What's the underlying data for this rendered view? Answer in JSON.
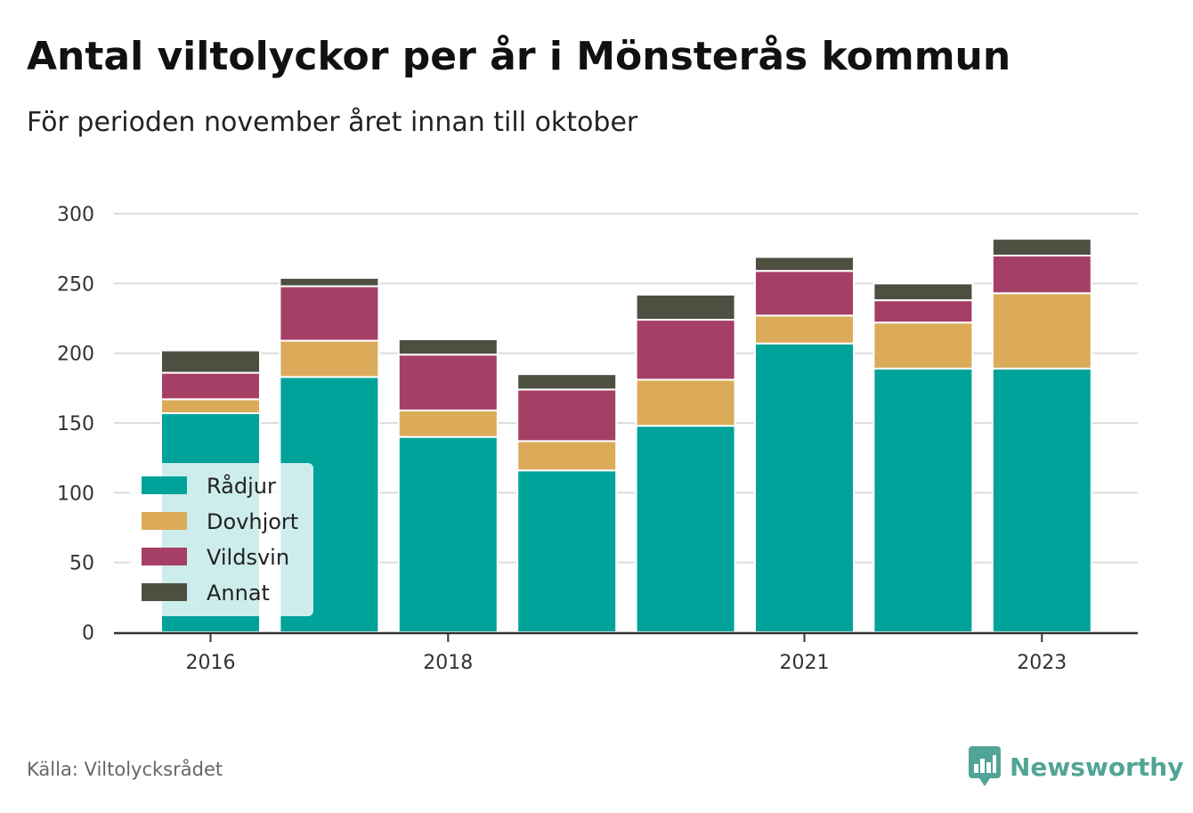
{
  "title": "Antal viltolyckor per år i Mönsterås kommun",
  "subtitle": "För perioden november året innan till oktober",
  "source": "Källa: Viltolycksrådet",
  "brand": "Newsworthy",
  "colors": {
    "Rådjur": "#00a39a",
    "Dovhjort": "#dbab5a",
    "Vildsvin": "#a63f66",
    "Annat": "#4e4f41",
    "grid": "#dcdcdc",
    "axis": "#333333"
  },
  "chart_data": {
    "type": "bar",
    "stacked": true,
    "categories": [
      "2016",
      "2017",
      "2018",
      "2019",
      "2020",
      "2021",
      "2022",
      "2023"
    ],
    "x_tick_labels": [
      "2016",
      "2018",
      "2021",
      "2023"
    ],
    "series": [
      {
        "name": "Rådjur",
        "values": [
          157,
          183,
          140,
          116,
          148,
          207,
          189,
          189
        ]
      },
      {
        "name": "Dovhjort",
        "values": [
          10,
          26,
          19,
          21,
          33,
          20,
          33,
          54
        ]
      },
      {
        "name": "Vildsvin",
        "values": [
          19,
          39,
          40,
          37,
          43,
          32,
          16,
          27
        ]
      },
      {
        "name": "Annat",
        "values": [
          16,
          6,
          11,
          11,
          18,
          10,
          12,
          12
        ]
      }
    ],
    "y_ticks": [
      "0",
      "50",
      "100",
      "150",
      "200",
      "250",
      "300"
    ],
    "ylim": [
      0,
      300
    ],
    "grid": true,
    "legend_position": "bottom-left"
  }
}
